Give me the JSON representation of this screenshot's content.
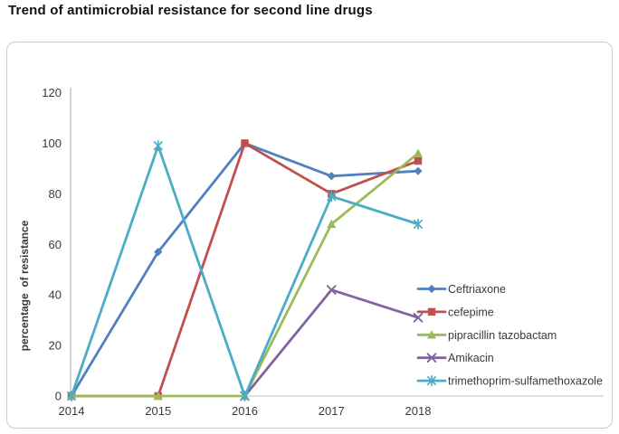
{
  "title": "Trend of antimicrobial resistance for second line drugs",
  "chart_data": {
    "type": "line",
    "x": [
      "2014",
      "2015",
      "2016",
      "2017",
      "2018"
    ],
    "series": [
      {
        "name": "Ceftriaxone",
        "color": "#4F81BD",
        "marker": "diamond",
        "values": [
          0,
          57,
          100,
          87,
          89
        ]
      },
      {
        "name": "cefepime",
        "color": "#C0504D",
        "marker": "square",
        "values": [
          0,
          0,
          100,
          80,
          93
        ]
      },
      {
        "name": "pipracillin tazobactam",
        "color": "#9BBB59",
        "marker": "triangle",
        "values": [
          0,
          0,
          0,
          68,
          96
        ]
      },
      {
        "name": "Amikacin",
        "color": "#8064A2",
        "marker": "x",
        "values": [
          null,
          null,
          0,
          42,
          31
        ]
      },
      {
        "name": "trimethoprim-sulfamethoxazole",
        "color": "#4BACC6",
        "marker": "star",
        "values": [
          0,
          99,
          0,
          79,
          68
        ]
      }
    ],
    "title": "Trend of antimicrobial resistance for second line drugs",
    "xlabel": "",
    "ylabel": "percentage  of resistance",
    "ylim": [
      0,
      120
    ],
    "yticks": [
      0,
      20,
      40,
      60,
      80,
      100,
      120
    ],
    "grid": false,
    "legend_position": "right-lower",
    "axis_color": "#bdbdbd",
    "tick_label_color": "#3a3a3a"
  }
}
